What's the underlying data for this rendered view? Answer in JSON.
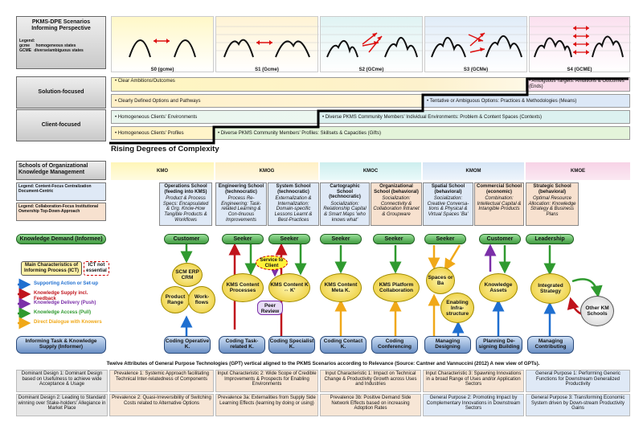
{
  "scenarios": {
    "title_line1": "PKMS-DPE Scenarios",
    "title_line2": "Informing Perspective",
    "legend_title": "Legend:",
    "legend_rows": [
      {
        "code": "gcme",
        "desc": "homogeneous states"
      },
      {
        "code": "GCME",
        "desc": "diverse/ambiguous states"
      }
    ],
    "items": [
      {
        "label": "S0 (gcme)"
      },
      {
        "label": "S1 (Gcme)"
      },
      {
        "label": "S2 (GCme)"
      },
      {
        "label": "S3 (GCMe)"
      },
      {
        "label": "S4 (GCME)"
      }
    ]
  },
  "focus": {
    "solution_label": "Solution-focused",
    "client_label": "Client-focused",
    "bands": [
      "• Clear Ambitions/Outcomes",
      "• Ambiguous Targets: Ambitions & Outcomes (Ends)",
      "• Clearly Defined Options and Pathways",
      "• Tentative or Ambiguous Options: Practices & Methodologies (Means)",
      "• Homogeneous Clients' Environments",
      "• Diverse PKMS Community Members' Individual Environments: Problem & Content Spaces (Contexts)",
      "• Homogeneous Clients' Profiles",
      "• Diverse PKMS Community Members' Profiles: Skillsets & Capacities (Gifts)"
    ],
    "complexity_label": "Rising Degrees of Complexity"
  },
  "schools": {
    "title": "Schools of Organizational Knowledge Management",
    "legend_content": "Legend: Content-Focus Centralization Document-Centric",
    "legend_collab": "Legend: Collaboration-Focus Institutional Ownership Top-Down-Approach",
    "headers": [
      "KMO",
      "KMOG",
      "KMOC",
      "KMOM",
      "KMOE"
    ],
    "columns": [
      {
        "name": "Operations School (feeding into KMS)",
        "desc": "Product & Process Specs: Encapsulated & Org. Know-How Tangible Products & Workflows"
      },
      {
        "name": "Engineering School (technocratic)",
        "desc": "Process Re-Engineering: Task-related Learning & Con-tinuous Improvements"
      },
      {
        "name": "System School (technocratic)",
        "desc": "Externalization & Internalization: Domain-specific Lessons Learnt & Best-Practices"
      },
      {
        "name": "Cartographic School (technocratic)",
        "desc": "Socialization: Relationship Capital & Smart Maps 'who knows what'"
      },
      {
        "name": "Organizational School (behavioral)",
        "desc": "Socialization: Connectivity & Collaboration Intranet & Groupware"
      },
      {
        "name": "Spatial School (behavioral)",
        "desc": "Socialization: Creative Conversa-tions & Physical & Virtual Spaces 'Ba'"
      },
      {
        "name": "Commercial School (economic)",
        "desc": "Combination: Intellectual Capital & Intangible Products"
      },
      {
        "name": "Strategic School (behavioral)",
        "desc": "Optimal Resource Allocation: Knowledge Strategy & Business Plans"
      }
    ]
  },
  "flow": {
    "knowledge_demand": "Knowledge Demand (Informee)",
    "main_characteristics": "Main Characteristics of Informing Process (ICT)",
    "ict_not_essential": "ICT not essential",
    "legend": [
      {
        "label": "Supporting Action or Set-up",
        "color": "#1f6fd0"
      },
      {
        "label": "Knowledge Supply incl. Feedback",
        "color": "#c0141c"
      },
      {
        "label": "Knowledge Delivery (Push)",
        "color": "#7b2fa8"
      },
      {
        "label": "Knowledge Access (Pull)",
        "color": "#2f9a2f"
      },
      {
        "label": "Direct Dialogue with Knowers",
        "color": "#f0a818"
      }
    ],
    "informing_task": "Informing Task & Knowledge Supply (Informer)",
    "top_pills": [
      "Customer",
      "Seeker",
      "Seeker",
      "Seeker",
      "Seeker",
      "Seeker",
      "Customer",
      "Leadership"
    ],
    "circles": {
      "scm": "SCM ERP CRM",
      "product_range": "Product Range",
      "workflows": "Work-flows",
      "kms_content_processes": "KMS Content Processes",
      "kms_content_k": "KMS Content K ⇔ K'",
      "service_to_client": "Service to Client",
      "peer_review": "Peer Review",
      "kms_content_meta": "KMS Content Meta K.",
      "kms_platform": "KMS Platform Collaboration",
      "spaces_ba": "Spaces or Ba",
      "enabling": "Enabling Infra-structure",
      "knowledge_assets": "Knowledge Assets",
      "integrated_strategy": "Integrated Strategy",
      "other_km": "Other KM Schools"
    },
    "bottom_pills": [
      "Coding Operative K.",
      "Coding Task-related K.",
      "Coding Specialist K.",
      "Coding Contact K.",
      "Coding Conferencing",
      "Managing Designing",
      "Planning De-signing Building",
      "Managing Contributing"
    ]
  },
  "gpt": {
    "title": "Twelve Attributes of General Purpose Technologies (GPT) vertical aligned to the PKMS Scenarios according to Relevance (Source: Cantner and Vannuccini (2012) A new view of GPTs).",
    "row1": [
      "Dominant Design 1: Dominant Design based on Usefulness to achieve wide Acceptance & Usage",
      "Prevalence 1: Systemic Approach facilitating Technical Inter-relatedness of Components",
      "Input Characteristic 2: Wide Scope of Credible Improvements & Prospects for Enabling Environments",
      "Input Characteristic 1: Impact on Technical Change & Productivity Growth across Uses and Industries",
      "Input Characteristic 3: Spawning Innovations in a broad Range of Uses and/or Application Sectors",
      "General Purpose 1: Performing Generic Functions for Downstream Generalized Productivity"
    ],
    "row2": [
      "Dominant Design 2: Leading to Standard winning over Stake-holders' Allegiance in Market Place",
      "Prevalence 2: Quasi-Irreversibility of Switching Costs related to Alternative Options",
      "Prevalence 3a: Externalities from Supply Side Learning Effects (learning by doing or using)",
      "Prevalence 3b: Positive Demand Side Network Effects based on increasing Adoption Rates",
      "General Purpose 2: Promoting Impact by Complementary Innovations in Downstream Sectors",
      "General Purpose 3: Transforming Economic System driven by Down-stream Productivity Gains"
    ]
  }
}
